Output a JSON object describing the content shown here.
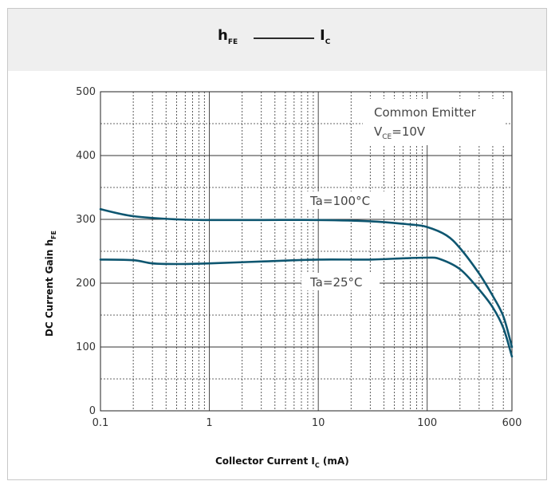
{
  "header": {
    "title_left": "h",
    "title_left_sub": "FE",
    "title_right": "I",
    "title_right_sub": "C"
  },
  "chart_data": {
    "type": "line",
    "title": "hFE — IC",
    "xlabel": "Collector Current I",
    "xlabel_sub": "C",
    "xlabel_unit": " (mA)",
    "ylabel": "DC Current Gain h",
    "ylabel_sub": "FE",
    "x_scale": "log",
    "xlim": [
      0.1,
      600
    ],
    "ylim": [
      0,
      500
    ],
    "x_ticks": [
      0.1,
      1,
      10,
      100,
      600
    ],
    "x_tick_labels": [
      "0.1",
      "1",
      "10",
      "100",
      "600"
    ],
    "y_ticks": [
      0,
      100,
      200,
      300,
      400,
      500
    ],
    "y_tick_labels": [
      "0",
      "100",
      "200",
      "300",
      "400",
      "500"
    ],
    "grid": true,
    "annotation_line1": "Common Emitter",
    "annotation_line2_main": "V",
    "annotation_line2_sub": "CE",
    "annotation_line2_rest": "=10V",
    "line_color": "#0e5670",
    "series": [
      {
        "name": "Ta=100°C",
        "points": [
          [
            0.1,
            316
          ],
          [
            0.2,
            305
          ],
          [
            0.5,
            300
          ],
          [
            1,
            299
          ],
          [
            3,
            299
          ],
          [
            10,
            299
          ],
          [
            30,
            297
          ],
          [
            70,
            292
          ],
          [
            100,
            288
          ],
          [
            150,
            275
          ],
          [
            200,
            255
          ],
          [
            300,
            215
          ],
          [
            400,
            180
          ],
          [
            500,
            148
          ],
          [
            600,
            100
          ]
        ]
      },
      {
        "name": "Ta=25°C",
        "points": [
          [
            0.1,
            237
          ],
          [
            0.2,
            236
          ],
          [
            0.3,
            231
          ],
          [
            0.5,
            230
          ],
          [
            1,
            231
          ],
          [
            3,
            234
          ],
          [
            10,
            237
          ],
          [
            30,
            237
          ],
          [
            60,
            239
          ],
          [
            100,
            240
          ],
          [
            130,
            238
          ],
          [
            200,
            222
          ],
          [
            300,
            190
          ],
          [
            400,
            162
          ],
          [
            500,
            130
          ],
          [
            600,
            85
          ]
        ]
      }
    ]
  }
}
